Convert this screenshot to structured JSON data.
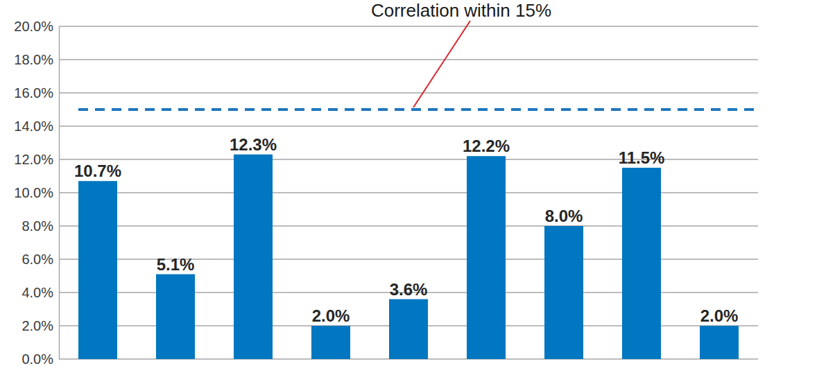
{
  "chart_data": {
    "type": "bar",
    "categories": [
      null,
      null,
      null,
      null,
      null,
      null,
      null,
      null,
      null
    ],
    "values": [
      10.7,
      5.1,
      12.3,
      2.0,
      3.6,
      12.2,
      8.0,
      11.5,
      2.0
    ],
    "value_labels": [
      "10.7%",
      "5.1%",
      "12.3%",
      "2.0%",
      "3.6%",
      "12.2%",
      "8.0%",
      "11.5%",
      "2.0%"
    ],
    "color": "#0077c0",
    "ylim": [
      0,
      20
    ],
    "yticks": [
      {
        "value": 0,
        "label": "0.0%"
      },
      {
        "value": 2,
        "label": "2.0%"
      },
      {
        "value": 4,
        "label": "4.0%"
      },
      {
        "value": 6,
        "label": "6.0%"
      },
      {
        "value": 8,
        "label": "8.0%"
      },
      {
        "value": 10,
        "label": "10.0%"
      },
      {
        "value": 12,
        "label": "12.0%"
      },
      {
        "value": 14,
        "label": "14.0%"
      },
      {
        "value": 16,
        "label": "16.0%"
      },
      {
        "value": 18,
        "label": "18.0%"
      },
      {
        "value": 20,
        "label": "20.0%"
      }
    ],
    "grid": true,
    "data_labels": true,
    "annotations": [
      {
        "text": "Correlation within 15%",
        "y": 15
      }
    ]
  }
}
